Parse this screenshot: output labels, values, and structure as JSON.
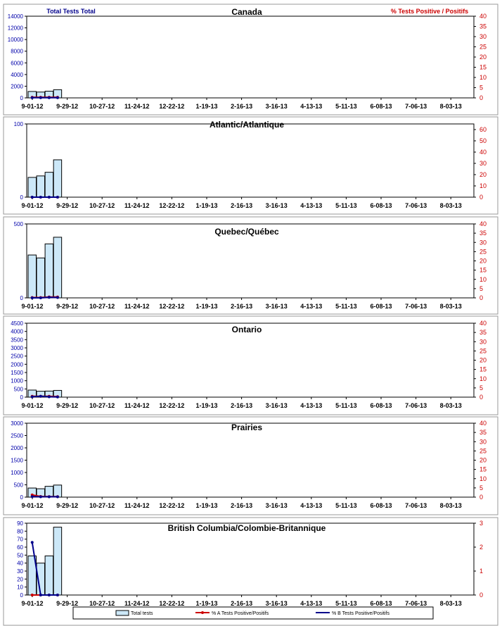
{
  "header": {
    "left_axis_title": "Total Tests Total",
    "right_axis_title": "% Tests Positive / Positifs"
  },
  "legend": {
    "items": [
      {
        "label": "Total tests",
        "color": "#cce8f8"
      },
      {
        "label": "% A Tests Positive/Positifs",
        "color": "#cc0000"
      },
      {
        "label": "% B Tests Positive/Positifs",
        "color": "#00008b"
      }
    ]
  },
  "colors": {
    "bar_fill": "#cce8f8",
    "flu_a": "#cc0000",
    "flu_b": "#00008b",
    "left_ticks": "#0000aa",
    "right_ticks": "#cc0000"
  },
  "chart_data": [
    {
      "type": "bar",
      "title": "Canada",
      "x_tick_labels": [
        "9-01-12",
        "9-29-12",
        "10-27-12",
        "11-24-12",
        "12-22-12",
        "1-19-13",
        "2-16-13",
        "3-16-13",
        "4-13-13",
        "5-11-13",
        "6-08-13",
        "7-06-13",
        "8-03-13"
      ],
      "y_left": {
        "min": 0,
        "max": 14000,
        "ticks": [
          0,
          2000,
          4000,
          6000,
          8000,
          10000,
          12000,
          14000
        ]
      },
      "y_right": {
        "min": 0,
        "max": 40,
        "ticks": [
          0,
          5,
          10,
          15,
          20,
          25,
          30,
          35,
          40
        ]
      },
      "series": [
        {
          "name": "Total tests",
          "values": [
            1100,
            1000,
            1150,
            1400
          ]
        },
        {
          "name": "% A Tests Positive/Positifs",
          "values": [
            0.3,
            0.3,
            0.3,
            0.3
          ]
        },
        {
          "name": "% B Tests Positive/Positifs",
          "values": [
            0.1,
            0.1,
            0.1,
            0.1
          ]
        }
      ]
    },
    {
      "type": "bar",
      "title": "Atlantic/Atlantique",
      "x_tick_labels": [
        "9-01-12",
        "9-29-12",
        "10-27-12",
        "11-24-12",
        "12-22-12",
        "1-19-13",
        "2-16-13",
        "3-16-13",
        "4-13-13",
        "5-11-13",
        "6-08-13",
        "7-06-13",
        "8-03-13"
      ],
      "y_left": {
        "min": 0,
        "max": 100,
        "ticks": [
          0,
          100
        ]
      },
      "y_right": {
        "min": 0,
        "max": 65,
        "ticks": [
          0,
          10,
          20,
          30,
          40,
          50,
          60
        ]
      },
      "series": [
        {
          "name": "Total tests",
          "values": [
            27,
            29,
            34,
            51
          ]
        },
        {
          "name": "% A Tests Positive/Positifs",
          "values": [
            0,
            0,
            0,
            0
          ]
        },
        {
          "name": "% B Tests Positive/Positifs",
          "values": [
            0,
            0,
            0,
            0
          ]
        }
      ]
    },
    {
      "type": "bar",
      "title": "Quebec/Québec",
      "x_tick_labels": [
        "9-01-12",
        "9-29-12",
        "10-27-12",
        "11-24-12",
        "12-22-12",
        "1-19-13",
        "2-16-13",
        "3-16-13",
        "4-13-13",
        "5-11-13",
        "6-08-13",
        "7-06-13",
        "8-03-13"
      ],
      "y_left": {
        "min": 0,
        "max": 500,
        "ticks": [
          0,
          500
        ]
      },
      "y_right": {
        "min": 0,
        "max": 40,
        "ticks": [
          0,
          5,
          10,
          15,
          20,
          25,
          30,
          35,
          40
        ]
      },
      "series": [
        {
          "name": "Total tests",
          "values": [
            290,
            270,
            365,
            410
          ]
        },
        {
          "name": "% A Tests Positive/Positifs",
          "values": [
            0.2,
            0.2,
            0.5,
            0.5
          ]
        },
        {
          "name": "% B Tests Positive/Positifs",
          "values": [
            0,
            0,
            0.3,
            0.2
          ]
        }
      ]
    },
    {
      "type": "bar",
      "title": "Ontario",
      "x_tick_labels": [
        "9-01-12",
        "9-29-12",
        "10-27-12",
        "11-24-12",
        "12-22-12",
        "1-19-13",
        "2-16-13",
        "3-16-13",
        "4-13-13",
        "5-11-13",
        "6-08-13",
        "7-06-13",
        "8-03-13"
      ],
      "y_left": {
        "min": 0,
        "max": 4500,
        "ticks": [
          0,
          500,
          1000,
          1500,
          2000,
          2500,
          3000,
          3500,
          4000,
          4500
        ]
      },
      "y_right": {
        "min": 0,
        "max": 40,
        "ticks": [
          0,
          5,
          10,
          15,
          20,
          25,
          30,
          35,
          40
        ]
      },
      "series": [
        {
          "name": "Total tests",
          "values": [
            430,
            360,
            370,
            410
          ]
        },
        {
          "name": "% A Tests Positive/Positifs",
          "values": [
            0.5,
            0.5,
            0.5,
            0.3
          ]
        },
        {
          "name": "% B Tests Positive/Positifs",
          "values": [
            0.2,
            0.5,
            0.2,
            0.1
          ]
        }
      ]
    },
    {
      "type": "bar",
      "title": "Prairies",
      "x_tick_labels": [
        "9-01-12",
        "9-29-12",
        "10-27-12",
        "11-24-12",
        "12-22-12",
        "1-19-13",
        "2-16-13",
        "3-16-13",
        "4-13-13",
        "5-11-13",
        "6-08-13",
        "7-06-13",
        "8-03-13"
      ],
      "y_left": {
        "min": 0,
        "max": 3000,
        "ticks": [
          0,
          500,
          1000,
          1500,
          2000,
          2500,
          3000
        ]
      },
      "y_right": {
        "min": 0,
        "max": 40,
        "ticks": [
          0,
          5,
          10,
          15,
          20,
          25,
          30,
          35,
          40
        ]
      },
      "series": [
        {
          "name": "Total tests",
          "values": [
            370,
            340,
            440,
            490
          ]
        },
        {
          "name": "% A Tests Positive/Positifs",
          "values": [
            1.2,
            0.4,
            0.3,
            0.3
          ]
        },
        {
          "name": "% B Tests Positive/Positifs",
          "values": [
            0.3,
            0.2,
            0.2,
            0.2
          ]
        }
      ]
    },
    {
      "type": "bar",
      "title": "British Columbia/Colombie-Britannique",
      "x_tick_labels": [
        "9-01-12",
        "9-29-12",
        "10-27-12",
        "11-24-12",
        "12-22-12",
        "1-19-13",
        "2-16-13",
        "3-16-13",
        "4-13-13",
        "5-11-13",
        "6-08-13",
        "7-06-13",
        "8-03-13"
      ],
      "y_left": {
        "min": 0,
        "max": 90,
        "ticks": [
          0,
          10,
          20,
          30,
          40,
          50,
          60,
          70,
          80,
          90
        ]
      },
      "y_right": {
        "min": 0,
        "max": 3,
        "ticks": [
          0,
          1,
          2,
          3
        ]
      },
      "series": [
        {
          "name": "Total tests",
          "values": [
            49,
            40,
            49,
            85
          ]
        },
        {
          "name": "% A Tests Positive/Positifs",
          "values": [
            0,
            0,
            0,
            0
          ]
        },
        {
          "name": "% B Tests Positive/Positifs",
          "values": [
            2.2,
            0,
            0,
            0
          ]
        }
      ]
    }
  ]
}
